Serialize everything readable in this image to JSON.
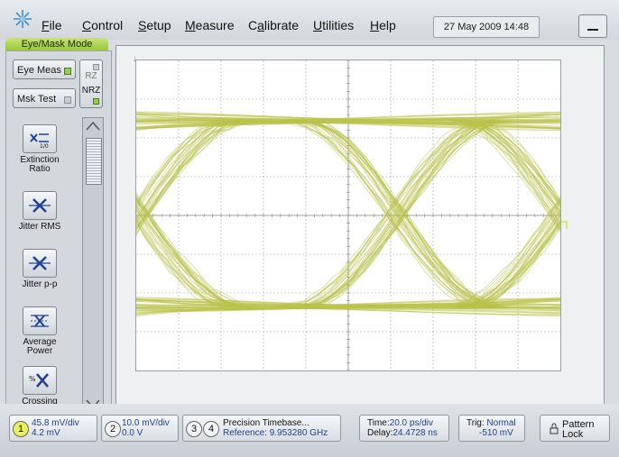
{
  "menubar": {
    "items": [
      {
        "label": "File",
        "underline_index": 0
      },
      {
        "label": "Control",
        "underline_index": 0
      },
      {
        "label": "Setup",
        "underline_index": 0
      },
      {
        "label": "Measure",
        "underline_index": 0
      },
      {
        "label": "Calibrate",
        "underline_index": 1
      },
      {
        "label": "Utilities",
        "underline_index": 0
      },
      {
        "label": "Help",
        "underline_index": 0
      }
    ],
    "datetime": "27 May 2009  14:48"
  },
  "mode_tab": "Eye/Mask Mode",
  "left_panel": {
    "eye_meas_label": "Eye Meas",
    "msk_test_label": "Msk Test",
    "rz_label": "RZ",
    "nrz_label": "NRZ",
    "measurements": [
      {
        "label": "Extinction Ratio",
        "icon": "extinction-ratio-icon"
      },
      {
        "label": "Jitter RMS",
        "icon": "jitter-rms-icon"
      },
      {
        "label": "Jitter p-p",
        "icon": "jitter-pp-icon"
      },
      {
        "label": "Average Power",
        "icon": "average-power-icon"
      },
      {
        "label": "Crossing Percentage",
        "icon": "crossing-percentage-icon"
      }
    ]
  },
  "bottom_bar": {
    "ch1": {
      "num": "1",
      "scale": "45.8 mV/div",
      "offset": "4.2 mV",
      "color": "#d6e64a"
    },
    "ch2": {
      "num": "2",
      "scale": "10.0 mV/div",
      "offset": "0.0 V"
    },
    "ch3": {
      "num": "3"
    },
    "ch4": {
      "num": "4"
    },
    "timebase": {
      "title": "Precision Timebase...",
      "reference": "Reference: 9.953280 GHz"
    },
    "time": {
      "time_label": "Time:",
      "time_value": "20.0 ps/div",
      "delay_label": "Delay:",
      "delay_value": "24.4728 ns"
    },
    "trig": {
      "label": "Trig:",
      "mode": "Normal",
      "level": "-510 mV"
    },
    "pattern_lock": {
      "line1": "Pattern",
      "line2": "Lock"
    }
  },
  "colors": {
    "trace": "#b9c24a",
    "grid": "#a6a6a6",
    "accent": "#98c83a"
  }
}
